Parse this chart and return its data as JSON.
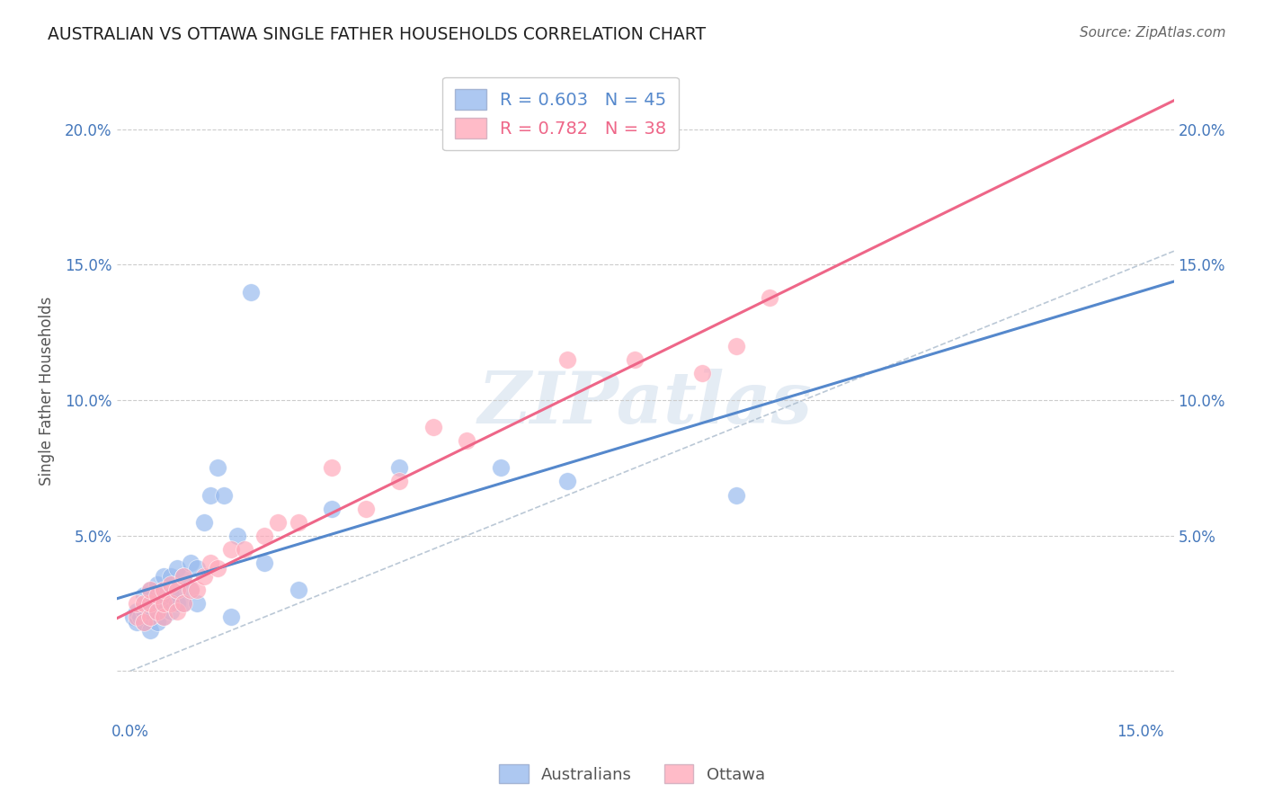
{
  "title": "AUSTRALIAN VS OTTAWA SINGLE FATHER HOUSEHOLDS CORRELATION CHART",
  "source": "Source: ZipAtlas.com",
  "ylabel": "Single Father Households",
  "background_color": "#ffffff",
  "watermark": "ZIPatlas",
  "australian_color": "#99bbee",
  "ottawa_color": "#ffaabb",
  "australian_line_color": "#5588cc",
  "ottawa_line_color": "#ee6688",
  "diagonal_color": "#aabbcc",
  "xlim": [
    -0.002,
    0.155
  ],
  "ylim": [
    -0.018,
    0.225
  ],
  "xticks": [
    0.0,
    0.025,
    0.05,
    0.075,
    0.1,
    0.125,
    0.15
  ],
  "yticks": [
    0.0,
    0.05,
    0.1,
    0.15,
    0.2
  ],
  "aus_x": [
    0.0005,
    0.001,
    0.001,
    0.0015,
    0.002,
    0.002,
    0.002,
    0.003,
    0.003,
    0.003,
    0.003,
    0.004,
    0.004,
    0.004,
    0.004,
    0.005,
    0.005,
    0.005,
    0.005,
    0.006,
    0.006,
    0.006,
    0.007,
    0.007,
    0.007,
    0.008,
    0.008,
    0.009,
    0.009,
    0.01,
    0.01,
    0.011,
    0.012,
    0.013,
    0.014,
    0.015,
    0.016,
    0.018,
    0.02,
    0.025,
    0.03,
    0.04,
    0.055,
    0.065,
    0.09
  ],
  "aus_y": [
    0.02,
    0.018,
    0.022,
    0.02,
    0.018,
    0.022,
    0.028,
    0.015,
    0.02,
    0.022,
    0.03,
    0.018,
    0.022,
    0.025,
    0.032,
    0.02,
    0.025,
    0.03,
    0.035,
    0.022,
    0.028,
    0.035,
    0.025,
    0.03,
    0.038,
    0.025,
    0.035,
    0.03,
    0.04,
    0.025,
    0.038,
    0.055,
    0.065,
    0.075,
    0.065,
    0.02,
    0.05,
    0.14,
    0.04,
    0.03,
    0.06,
    0.075,
    0.075,
    0.07,
    0.065
  ],
  "ott_x": [
    0.001,
    0.001,
    0.002,
    0.002,
    0.003,
    0.003,
    0.003,
    0.004,
    0.004,
    0.005,
    0.005,
    0.005,
    0.006,
    0.006,
    0.007,
    0.007,
    0.008,
    0.008,
    0.009,
    0.01,
    0.011,
    0.012,
    0.013,
    0.015,
    0.017,
    0.02,
    0.022,
    0.025,
    0.03,
    0.035,
    0.04,
    0.045,
    0.05,
    0.065,
    0.075,
    0.085,
    0.09,
    0.095
  ],
  "ott_y": [
    0.02,
    0.025,
    0.018,
    0.025,
    0.02,
    0.025,
    0.03,
    0.022,
    0.028,
    0.02,
    0.025,
    0.03,
    0.025,
    0.032,
    0.022,
    0.03,
    0.025,
    0.035,
    0.03,
    0.03,
    0.035,
    0.04,
    0.038,
    0.045,
    0.045,
    0.05,
    0.055,
    0.055,
    0.075,
    0.06,
    0.07,
    0.09,
    0.085,
    0.115,
    0.115,
    0.11,
    0.12,
    0.138
  ],
  "aus_line_x": [
    -0.005,
    0.155
  ],
  "aus_line_y": [
    -0.005,
    0.155
  ],
  "legend_aus_text": "R = 0.603   N = 45",
  "legend_ott_text": "R = 0.782   N = 38"
}
